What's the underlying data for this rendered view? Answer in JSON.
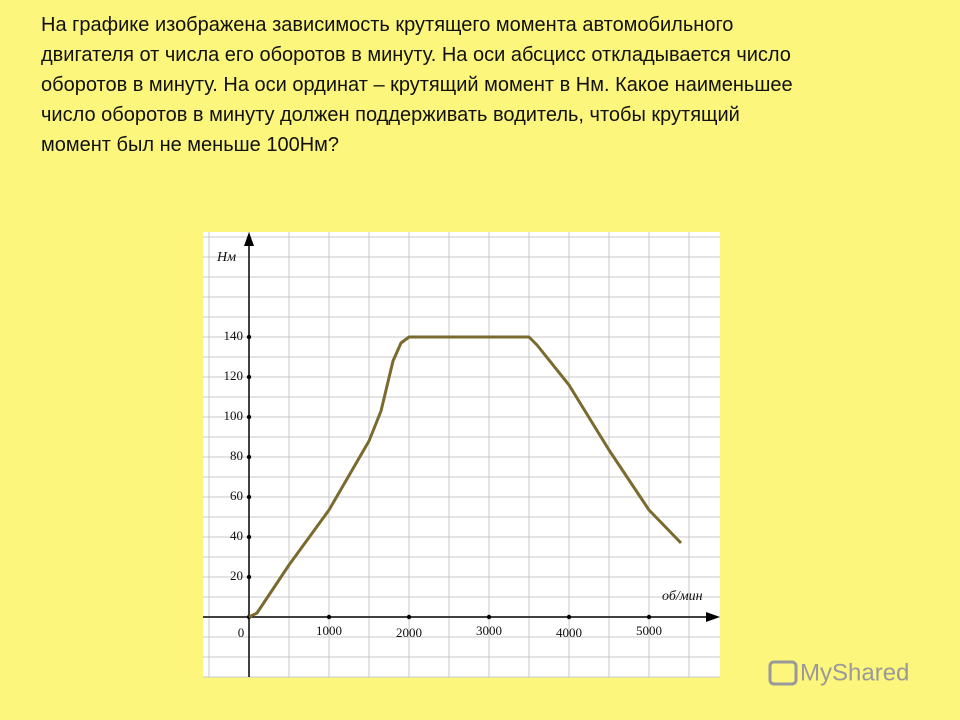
{
  "question": [
    "На графике изображена зависимость крутящего момента автомобильного",
    "двигателя от числа его оборотов в минуту. На оси абсцисс откладывается число",
    "оборотов в минуту. На оси ординат – крутящий момент в Нм. Какое наименьшее",
    "число оборотов в минуту должен поддерживать водитель, чтобы крутящий",
    "момент был не меньше 100Нм?"
  ],
  "watermark": "MyShared",
  "chart_data": {
    "type": "line",
    "x": [
      0,
      100,
      500,
      1000,
      1500,
      1650,
      1800,
      1900,
      2000,
      2500,
      3000,
      3500,
      3600,
      4000,
      4500,
      5000,
      5400
    ],
    "values": [
      0,
      2,
      26,
      53.5,
      88,
      103,
      128,
      137,
      140,
      140,
      140,
      140,
      136,
      116,
      83.5,
      53.5,
      37
    ],
    "color": "#7a6a2e",
    "xlabel": "об/мин",
    "ylabel": "Нм",
    "xlim": [
      -575,
      5887.5
    ],
    "ylim": [
      -30,
      192.5
    ],
    "xticks": [
      0,
      1000,
      2000,
      3000,
      4000,
      5000
    ],
    "yticks": [
      20,
      40,
      60,
      80,
      100,
      120,
      140
    ],
    "grid": true
  }
}
